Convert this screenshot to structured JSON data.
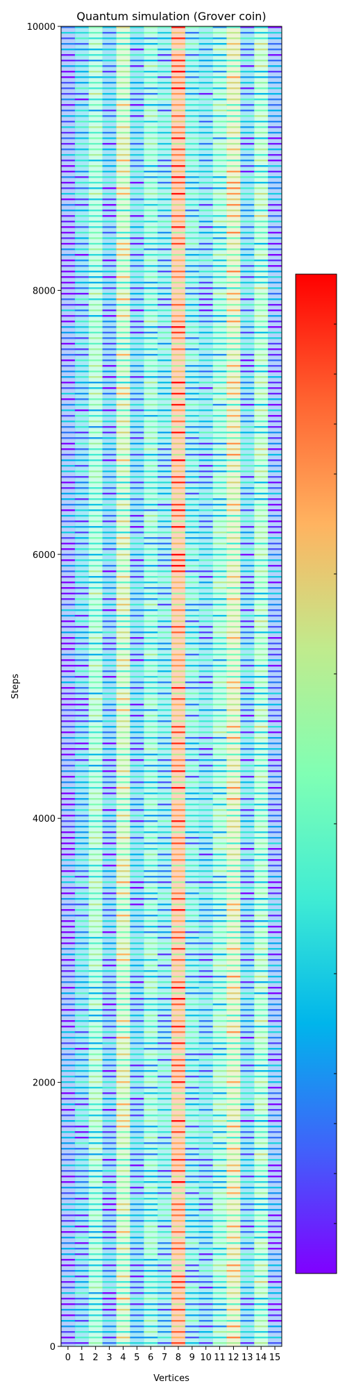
{
  "chart_data": {
    "type": "heatmap",
    "title": "Quantum simulation (Grover coin)",
    "xlabel": "Vertices",
    "ylabel": "Steps",
    "x_ticks": [
      "0",
      "1",
      "2",
      "3",
      "4",
      "5",
      "6",
      "7",
      "8",
      "9",
      "10",
      "11",
      "12",
      "13",
      "14",
      "15"
    ],
    "y_ticks": [
      0,
      2000,
      4000,
      6000,
      8000,
      10000
    ],
    "ylim": [
      0,
      10000
    ],
    "colormap": "rainbow",
    "colorbar": {
      "present": true,
      "tick_labels_visible": false
    },
    "column_mean_intensity": [
      0.1,
      0.22,
      0.42,
      0.18,
      0.55,
      0.2,
      0.38,
      0.28,
      0.78,
      0.3,
      0.24,
      0.4,
      0.6,
      0.22,
      0.46,
      0.12
    ],
    "grid": false
  }
}
